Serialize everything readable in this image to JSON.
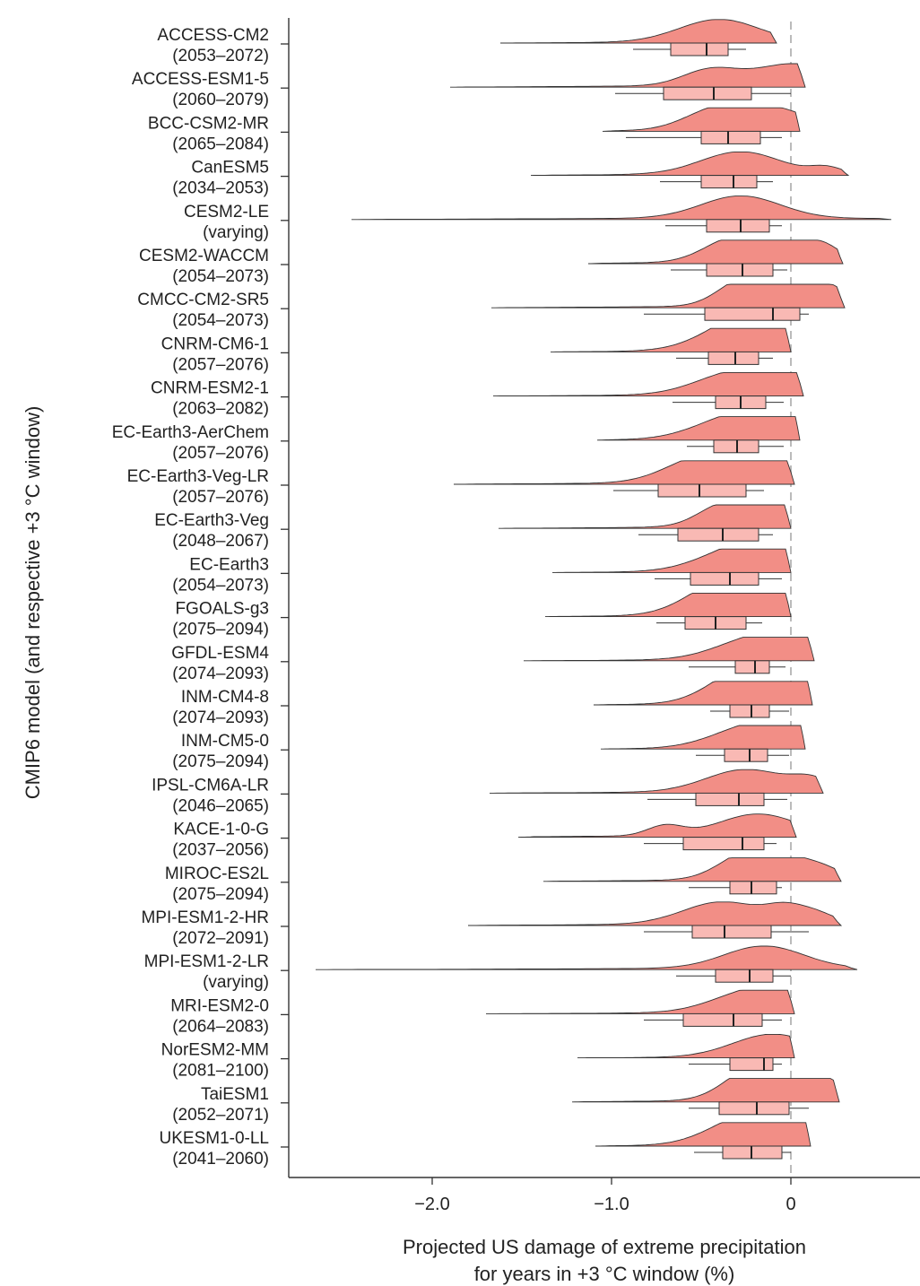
{
  "chart_data": {
    "type": "raincloud",
    "xlabel": [
      "Projected US damage of extreme precipitation",
      "for years in +3 °C window (%)"
    ],
    "ylabel": "CMIP6 model (and respective +3 °C window)",
    "xlim": [
      -2.8,
      0.7
    ],
    "xticks": [
      {
        "value": -2.0,
        "label": "−2.0"
      },
      {
        "value": -1.0,
        "label": "−1.0"
      },
      {
        "value": 0,
        "label": "0"
      }
    ],
    "reference_line_x": 0,
    "colors": {
      "density_fill": "#f28e86",
      "density_stroke": "#333333",
      "box_fill": "#f9b9b4",
      "box_stroke": "#333333",
      "reference_line": "#bbbbbb",
      "axis": "#333333"
    },
    "models": [
      {
        "name": "ACCESS-CM2",
        "window": "(2053–2072)",
        "min": -1.62,
        "max": -0.08,
        "whisker": [
          -0.88,
          -0.25
        ],
        "q1": -0.67,
        "median": -0.47,
        "q3": -0.35,
        "peaks": [
          [
            -0.4,
            1.0
          ]
        ]
      },
      {
        "name": "ACCESS-ESM1-5",
        "window": "(2060–2079)",
        "min": -1.9,
        "max": 0.08,
        "whisker": [
          -0.98,
          0.0
        ],
        "q1": -0.71,
        "median": -0.43,
        "q3": -0.22,
        "peaks": [
          [
            -0.45,
            0.7
          ],
          [
            0.02,
            1.0
          ]
        ]
      },
      {
        "name": "BCC-CSM2-MR",
        "window": "(2065–2084)",
        "min": -1.05,
        "max": 0.05,
        "whisker": [
          -0.92,
          -0.05
        ],
        "q1": -0.5,
        "median": -0.35,
        "q3": -0.17,
        "peaks": [
          [
            -0.42,
            0.8
          ],
          [
            -0.1,
            0.95
          ]
        ]
      },
      {
        "name": "CanESM5",
        "window": "(2034–2053)",
        "min": -1.45,
        "max": 0.32,
        "whisker": [
          -0.73,
          -0.1
        ],
        "q1": -0.5,
        "median": -0.32,
        "q3": -0.19,
        "peaks": [
          [
            -0.28,
            1.0
          ],
          [
            0.2,
            0.3
          ]
        ]
      },
      {
        "name": "CESM2-LE",
        "window": "(varying)",
        "min": -2.45,
        "max": 0.56,
        "whisker": [
          -0.7,
          -0.05
        ],
        "q1": -0.47,
        "median": -0.28,
        "q3": -0.12,
        "peaks": [
          [
            -0.28,
            1.0
          ]
        ]
      },
      {
        "name": "CESM2-WACCM",
        "window": "(2054–2073)",
        "min": -1.13,
        "max": 0.29,
        "whisker": [
          -0.67,
          -0.02
        ],
        "q1": -0.47,
        "median": -0.27,
        "q3": -0.1,
        "peaks": [
          [
            -0.35,
            0.7
          ],
          [
            -0.06,
            1.0
          ],
          [
            0.18,
            0.4
          ]
        ]
      },
      {
        "name": "CMCC-CM2-SR5",
        "window": "(2054–2073)",
        "min": -1.67,
        "max": 0.3,
        "whisker": [
          -0.82,
          0.1
        ],
        "q1": -0.48,
        "median": -0.1,
        "q3": 0.05,
        "peaks": [
          [
            -0.3,
            0.6
          ],
          [
            -0.08,
            0.85
          ],
          [
            0.08,
            1.0
          ]
        ]
      },
      {
        "name": "CNRM-CM6-1",
        "window": "(2057–2076)",
        "min": -1.34,
        "max": 0.0,
        "whisker": [
          -0.64,
          -0.1
        ],
        "q1": -0.46,
        "median": -0.31,
        "q3": -0.18,
        "peaks": [
          [
            -0.28,
            1.0
          ],
          [
            -0.1,
            0.95
          ]
        ]
      },
      {
        "name": "CNRM-ESM2-1",
        "window": "(2063–2082)",
        "min": -1.66,
        "max": 0.07,
        "whisker": [
          -0.66,
          -0.04
        ],
        "q1": -0.42,
        "median": -0.28,
        "q3": -0.14,
        "peaks": [
          [
            -0.3,
            1.0
          ],
          [
            0.03,
            0.8
          ]
        ]
      },
      {
        "name": "EC-Earth3-AerChem",
        "window": "(2057–2076)",
        "min": -1.08,
        "max": 0.05,
        "whisker": [
          -0.58,
          -0.04
        ],
        "q1": -0.43,
        "median": -0.3,
        "q3": -0.18,
        "peaks": [
          [
            -0.3,
            1.0
          ],
          [
            0.03,
            0.9
          ]
        ]
      },
      {
        "name": "EC-Earth3-Veg-LR",
        "window": "(2057–2076)",
        "min": -1.88,
        "max": 0.02,
        "whisker": [
          -0.99,
          -0.15
        ],
        "q1": -0.74,
        "median": -0.51,
        "q3": -0.25,
        "peaks": [
          [
            -0.52,
            0.9
          ],
          [
            -0.2,
            1.0
          ],
          [
            0.0,
            0.55
          ]
        ]
      },
      {
        "name": "EC-Earth3-Veg",
        "window": "(2048–2067)",
        "min": -1.63,
        "max": 0.0,
        "whisker": [
          -0.85,
          -0.1
        ],
        "q1": -0.63,
        "median": -0.38,
        "q3": -0.18,
        "peaks": [
          [
            -0.4,
            0.6
          ],
          [
            -0.12,
            1.0
          ],
          [
            -0.02,
            0.7
          ]
        ]
      },
      {
        "name": "EC-Earth3",
        "window": "(2054–2073)",
        "min": -1.33,
        "max": 0.0,
        "whisker": [
          -0.76,
          -0.05
        ],
        "q1": -0.56,
        "median": -0.34,
        "q3": -0.18,
        "peaks": [
          [
            -0.28,
            1.0
          ],
          [
            -0.05,
            0.8
          ]
        ]
      },
      {
        "name": "FGOALS-g3",
        "window": "(2075–2094)",
        "min": -1.37,
        "max": 0.0,
        "whisker": [
          -0.75,
          -0.16
        ],
        "q1": -0.59,
        "median": -0.42,
        "q3": -0.25,
        "peaks": [
          [
            -0.4,
            0.9
          ],
          [
            -0.22,
            1.0
          ],
          [
            0.0,
            0.5
          ]
        ]
      },
      {
        "name": "GFDL-ESM4",
        "window": "(2074–2093)",
        "min": -1.49,
        "max": 0.13,
        "whisker": [
          -0.57,
          -0.03
        ],
        "q1": -0.31,
        "median": -0.2,
        "q3": -0.12,
        "peaks": [
          [
            -0.18,
            1.0
          ],
          [
            -0.02,
            0.55
          ],
          [
            0.1,
            0.3
          ]
        ]
      },
      {
        "name": "INM-CM4-8",
        "window": "(2074–2093)",
        "min": -1.1,
        "max": 0.12,
        "whisker": [
          -0.45,
          -0.01
        ],
        "q1": -0.34,
        "median": -0.22,
        "q3": -0.12,
        "peaks": [
          [
            -0.28,
            0.85
          ],
          [
            -0.12,
            1.0
          ],
          [
            0.05,
            0.5
          ]
        ]
      },
      {
        "name": "INM-CM5-0",
        "window": "(2075–2094)",
        "min": -1.06,
        "max": 0.08,
        "whisker": [
          -0.53,
          -0.01
        ],
        "q1": -0.37,
        "median": -0.23,
        "q3": -0.13,
        "peaks": [
          [
            -0.2,
            1.0
          ],
          [
            0.04,
            0.7
          ]
        ]
      },
      {
        "name": "IPSL-CM6A-LR",
        "window": "(2046–2065)",
        "min": -1.68,
        "max": 0.18,
        "whisker": [
          -0.8,
          -0.02
        ],
        "q1": -0.53,
        "median": -0.29,
        "q3": -0.15,
        "peaks": [
          [
            -0.25,
            1.0
          ],
          [
            0.12,
            0.5
          ]
        ]
      },
      {
        "name": "KACE-1-0-G",
        "window": "(2037–2056)",
        "min": -1.52,
        "max": 0.03,
        "whisker": [
          -0.82,
          -0.08
        ],
        "q1": -0.6,
        "median": -0.27,
        "q3": -0.15,
        "peaks": [
          [
            -0.7,
            0.45
          ],
          [
            -0.18,
            1.0
          ]
        ]
      },
      {
        "name": "MIROC-ES2L",
        "window": "(2075–2094)",
        "min": -1.38,
        "max": 0.28,
        "whisker": [
          -0.57,
          -0.05
        ],
        "q1": -0.34,
        "median": -0.22,
        "q3": -0.08,
        "peaks": [
          [
            -0.25,
            0.7
          ],
          [
            -0.05,
            1.0
          ],
          [
            0.18,
            0.15
          ]
        ]
      },
      {
        "name": "MPI-ESM1-2-HR",
        "window": "(2072–2091)",
        "min": -1.8,
        "max": 0.28,
        "whisker": [
          -0.82,
          0.1
        ],
        "q1": -0.55,
        "median": -0.37,
        "q3": -0.11,
        "peaks": [
          [
            -0.38,
            1.0
          ],
          [
            -0.05,
            0.45
          ],
          [
            0.12,
            0.55
          ]
        ]
      },
      {
        "name": "MPI-ESM1-2-LR",
        "window": "(varying)",
        "min": -2.65,
        "max": 0.37,
        "whisker": [
          -0.64,
          0.0
        ],
        "q1": -0.42,
        "median": -0.23,
        "q3": -0.1,
        "peaks": [
          [
            -0.15,
            1.0
          ]
        ]
      },
      {
        "name": "MRI-ESM2-0",
        "window": "(2064–2083)",
        "min": -1.7,
        "max": 0.02,
        "whisker": [
          -0.82,
          -0.05
        ],
        "q1": -0.6,
        "median": -0.32,
        "q3": -0.16,
        "peaks": [
          [
            -0.2,
            1.0
          ],
          [
            0.0,
            0.6
          ]
        ]
      },
      {
        "name": "NorESM2-MM",
        "window": "(2081–2100)",
        "min": -1.19,
        "max": 0.02,
        "whisker": [
          -0.57,
          -0.05
        ],
        "q1": -0.34,
        "median": -0.15,
        "q3": -0.1,
        "peaks": [
          [
            -0.1,
            1.0
          ]
        ]
      },
      {
        "name": "TaiESM1",
        "window": "(2052–2071)",
        "min": -1.22,
        "max": 0.27,
        "whisker": [
          -0.57,
          0.1
        ],
        "q1": -0.4,
        "median": -0.19,
        "q3": -0.01,
        "peaks": [
          [
            -0.25,
            0.7
          ],
          [
            -0.08,
            0.8
          ],
          [
            0.08,
            1.0
          ]
        ]
      },
      {
        "name": "UKESM1-0-LL",
        "window": "(2041–2060)",
        "min": -1.09,
        "max": 0.11,
        "whisker": [
          -0.54,
          0.0
        ],
        "q1": -0.38,
        "median": -0.22,
        "q3": -0.05,
        "peaks": [
          [
            -0.28,
            0.9
          ],
          [
            0.0,
            1.0
          ]
        ]
      }
    ]
  }
}
